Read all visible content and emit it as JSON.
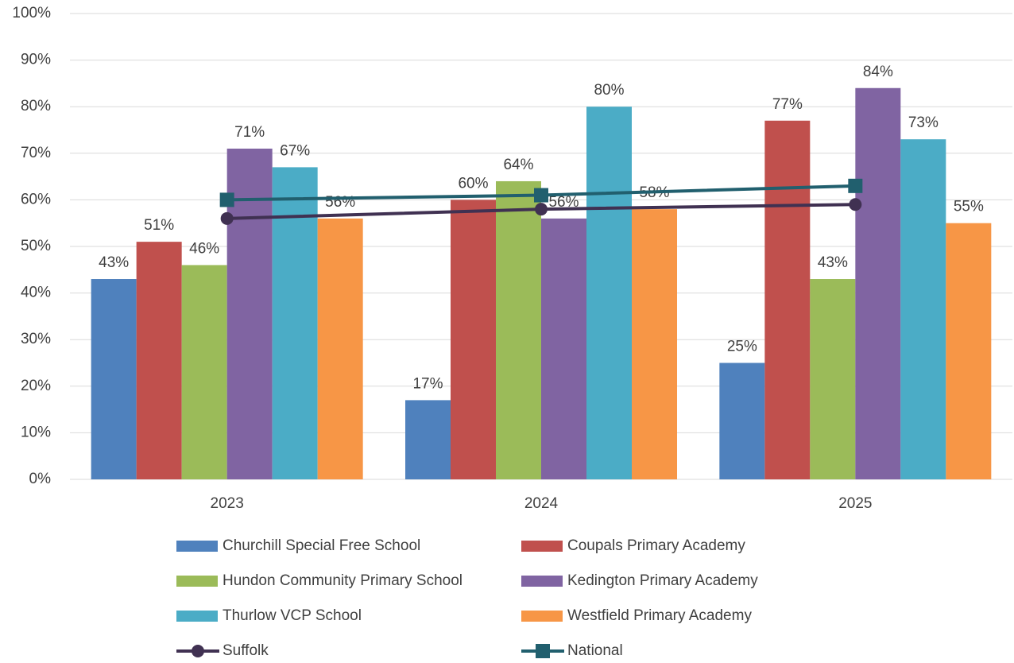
{
  "chart_data": {
    "type": "bar",
    "categories": [
      "2023",
      "2024",
      "2025"
    ],
    "ylim": [
      0,
      100
    ],
    "yticks": [
      {
        "value": 0,
        "label": "0%"
      },
      {
        "value": 10,
        "label": "10%"
      },
      {
        "value": 20,
        "label": "20%"
      },
      {
        "value": 30,
        "label": "30%"
      },
      {
        "value": 40,
        "label": "40%"
      },
      {
        "value": 50,
        "label": "50%"
      },
      {
        "value": 60,
        "label": "60%"
      },
      {
        "value": 70,
        "label": "70%"
      },
      {
        "value": 80,
        "label": "80%"
      },
      {
        "value": 90,
        "label": "90%"
      },
      {
        "value": 100,
        "label": "100%"
      }
    ],
    "grid": true,
    "legend": "bottom",
    "series": [
      {
        "name": "Churchill Special Free School",
        "type": "bar",
        "color": "#4f81bd",
        "values": [
          43,
          17,
          25
        ],
        "value_labels": [
          "43%",
          "17%",
          "25%"
        ]
      },
      {
        "name": "Coupals Primary Academy",
        "type": "bar",
        "color": "#c0504d",
        "values": [
          51,
          60,
          77
        ],
        "value_labels": [
          "51%",
          "60%",
          "77%"
        ]
      },
      {
        "name": "Hundon Community Primary School",
        "type": "bar",
        "color": "#9bbb59",
        "values": [
          46,
          64,
          43
        ],
        "value_labels": [
          "46%",
          "64%",
          "43%"
        ]
      },
      {
        "name": "Kedington Primary Academy",
        "type": "bar",
        "color": "#8064a2",
        "values": [
          71,
          56,
          84
        ],
        "value_labels": [
          "71%",
          "56%",
          "84%"
        ]
      },
      {
        "name": "Thurlow VCP School",
        "type": "bar",
        "color": "#4bacc6",
        "values": [
          67,
          80,
          73
        ],
        "value_labels": [
          "67%",
          "80%",
          "73%"
        ]
      },
      {
        "name": "Westfield Primary Academy",
        "type": "bar",
        "color": "#f79646",
        "values": [
          56,
          58,
          55
        ],
        "value_labels": [
          "56%",
          "58%",
          "55%"
        ]
      },
      {
        "name": "Suffolk",
        "type": "line",
        "marker": "circle",
        "color": "#403152",
        "values": [
          56,
          58,
          59
        ]
      },
      {
        "name": "National",
        "type": "line",
        "marker": "square",
        "color": "#215f6e",
        "values": [
          60,
          61,
          63
        ]
      }
    ]
  }
}
